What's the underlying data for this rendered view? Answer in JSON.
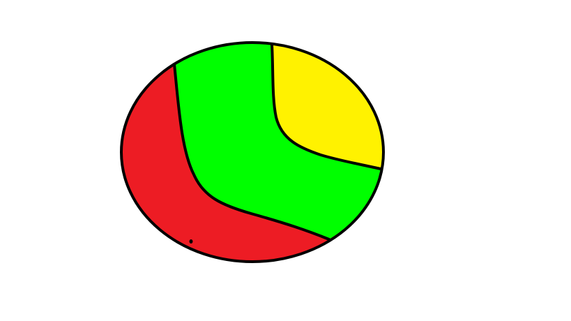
{
  "colors": {
    "background": "#ffffff",
    "outline": "#000000",
    "region_red": "#ed1c24",
    "region_green": "#00ff00",
    "region_yellow": "#fff200"
  },
  "drawing": {
    "regions": [
      "red-region",
      "green-region",
      "yellow-region"
    ]
  }
}
